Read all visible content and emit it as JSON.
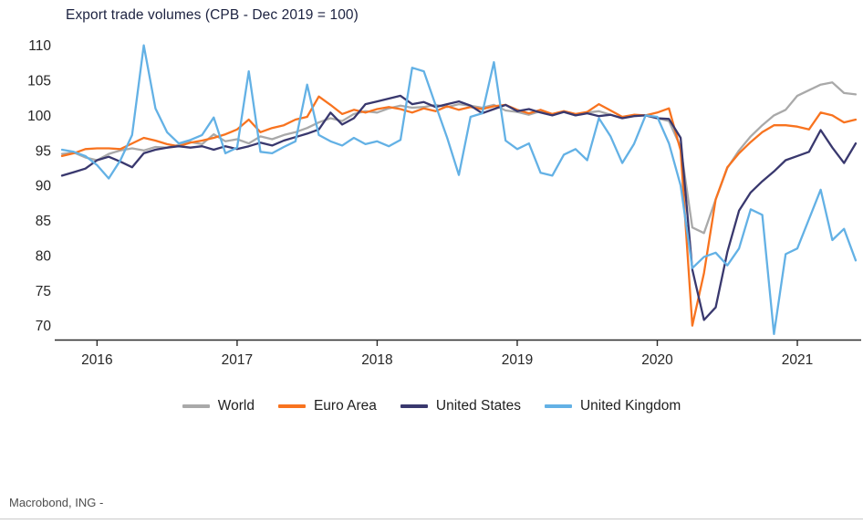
{
  "source": {
    "label": "Macrobond, ING -"
  },
  "chart_data": {
    "type": "line",
    "title": "Export trade volumes (CPB - Dec 2019 = 100)",
    "x_frequency": "monthly",
    "x_start": "2015-10",
    "x_end": "2021-06",
    "x_tick_labels": [
      "2016",
      "2017",
      "2018",
      "2019",
      "2020",
      "2021"
    ],
    "x_tick_month_indices": [
      3,
      15,
      27,
      39,
      51,
      63
    ],
    "y_ticks": [
      70,
      75,
      80,
      85,
      90,
      95,
      100,
      105,
      110
    ],
    "y_range": [
      68,
      111
    ],
    "grid": false,
    "legend_position": "bottom",
    "axis_color": "#2b2b2b",
    "series": [
      {
        "name": "World",
        "color": "#a9a9a9",
        "values": [
          94.5,
          94.7,
          94.0,
          93.6,
          94.5,
          95.0,
          95.3,
          95.0,
          95.5,
          95.4,
          95.8,
          96.2,
          95.9,
          97.3,
          96.3,
          96.6,
          96.0,
          97.0,
          96.6,
          97.2,
          97.6,
          98.2,
          99.0,
          99.6,
          99.2,
          100.2,
          100.6,
          100.4,
          101.0,
          101.4,
          101.1,
          101.2,
          101.5,
          101.2,
          101.6,
          101.4,
          101.1,
          101.5,
          100.7,
          100.5,
          100.1,
          100.6,
          100.2,
          100.5,
          100.0,
          100.4,
          100.6,
          100.1,
          99.6,
          100.0,
          100.0,
          99.6,
          99.2,
          95.5,
          84.0,
          83.2,
          88.0,
          92.5,
          95.0,
          97.0,
          98.6,
          100.0,
          100.8,
          102.8,
          103.6,
          104.4,
          104.7,
          103.2,
          103.0
        ]
      },
      {
        "name": "Euro Area",
        "color": "#f8731f",
        "values": [
          94.2,
          94.6,
          95.2,
          95.3,
          95.3,
          95.2,
          96.0,
          96.8,
          96.4,
          95.9,
          95.6,
          96.1,
          96.4,
          96.8,
          97.3,
          98.0,
          99.4,
          97.6,
          98.2,
          98.6,
          99.4,
          99.8,
          102.7,
          101.5,
          100.2,
          100.8,
          100.4,
          100.9,
          101.2,
          100.9,
          100.4,
          101.0,
          100.6,
          101.3,
          100.8,
          101.2,
          100.9,
          101.3,
          101.5,
          100.8,
          100.3,
          100.8,
          100.2,
          100.6,
          100.2,
          100.5,
          101.6,
          100.7,
          99.8,
          100.1,
          100.0,
          100.4,
          101.0,
          95.0,
          70.0,
          77.5,
          88.0,
          92.6,
          94.6,
          96.2,
          97.6,
          98.6,
          98.6,
          98.4,
          98.0,
          100.4,
          100.0,
          99.0,
          99.4
        ]
      },
      {
        "name": "United States",
        "color": "#39386e",
        "values": [
          91.4,
          91.9,
          92.4,
          93.6,
          94.1,
          93.4,
          92.6,
          94.6,
          95.1,
          95.4,
          95.6,
          95.4,
          95.6,
          95.1,
          95.6,
          95.2,
          95.6,
          96.1,
          95.7,
          96.4,
          96.9,
          97.4,
          98.0,
          100.4,
          98.7,
          99.6,
          101.6,
          102.0,
          102.4,
          102.8,
          101.6,
          101.9,
          101.2,
          101.6,
          102.0,
          101.4,
          100.3,
          100.9,
          101.5,
          100.6,
          100.9,
          100.4,
          100.0,
          100.5,
          100.0,
          100.3,
          99.9,
          100.1,
          99.6,
          99.9,
          100.0,
          99.6,
          99.5,
          96.8,
          78.0,
          70.8,
          72.6,
          80.5,
          86.4,
          89.0,
          90.6,
          92.0,
          93.6,
          94.2,
          94.8,
          97.9,
          95.4,
          93.2,
          96.0
        ]
      },
      {
        "name": "United Kingdom",
        "color": "#63b1e5",
        "values": [
          95.1,
          94.8,
          94.2,
          92.9,
          91.0,
          93.6,
          97.2,
          110.0,
          101.0,
          97.6,
          96.0,
          96.5,
          97.2,
          99.7,
          94.6,
          95.4,
          106.3,
          94.8,
          94.6,
          95.5,
          96.3,
          104.4,
          97.2,
          96.3,
          95.7,
          96.8,
          95.9,
          96.3,
          95.6,
          96.5,
          106.8,
          106.3,
          101.5,
          96.8,
          91.5,
          99.8,
          100.3,
          107.6,
          96.4,
          95.2,
          96.0,
          91.8,
          91.4,
          94.4,
          95.2,
          93.6,
          99.6,
          97.0,
          93.2,
          95.9,
          100.0,
          99.8,
          96.0,
          90.0,
          78.2,
          79.8,
          80.4,
          78.6,
          81.0,
          86.6,
          85.8,
          68.8,
          80.2,
          81.0,
          85.2,
          89.4,
          82.2,
          83.8,
          79.3
        ]
      }
    ]
  }
}
